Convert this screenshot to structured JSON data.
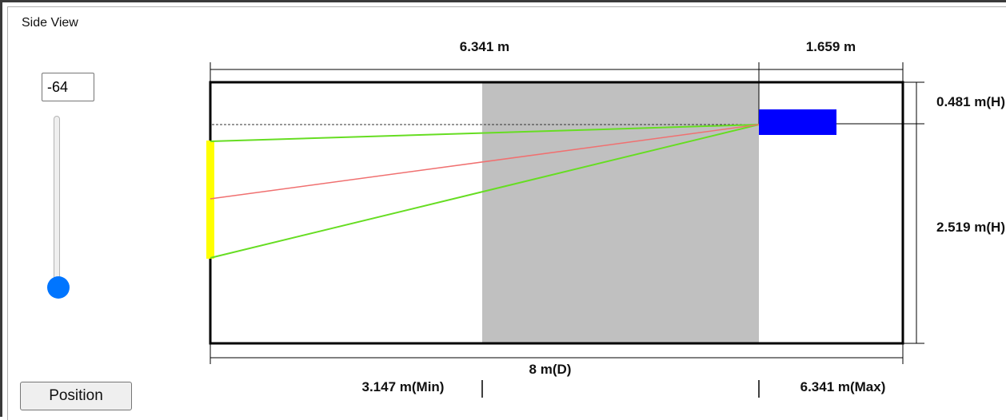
{
  "panel": {
    "title": "Side View"
  },
  "controls": {
    "angle_value": "-64",
    "slider_level": 0.06,
    "position_button_label": "Position"
  },
  "dimensions": {
    "top_left_width": "6.341 m",
    "top_right_width": "1.659 m",
    "right_upper_height": "0.481 m(H)",
    "right_lower_height": "2.519 m(H)",
    "bottom_depth": "8 m(D)",
    "min_distance": "3.147 m(Min)",
    "max_distance": "6.341 m(Max)"
  },
  "colors": {
    "device": "#0000ff",
    "target_bar": "#ffff00",
    "coverage_lines": "#66dd22",
    "center_line": "#f07070",
    "coverage_zone": "#c0c0c0",
    "room_outline": "#000000"
  }
}
